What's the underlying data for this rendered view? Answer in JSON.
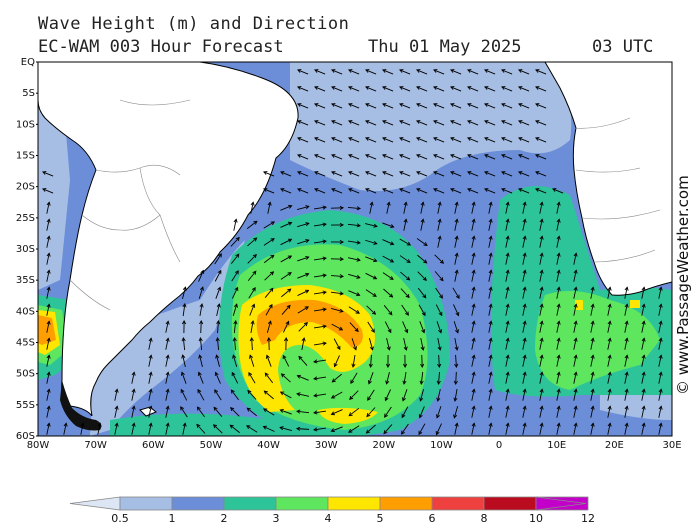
{
  "title": "Wave Height (m) and Direction",
  "model": "EC-WAM 003 Hour Forecast",
  "date": "Thu 01 May 2025",
  "time": "03 UTC",
  "watermark": "© www.PassageWeather.com",
  "lat_labels": [
    "EQ",
    "5S",
    "10S",
    "15S",
    "20S",
    "25S",
    "30S",
    "35S",
    "40S",
    "45S",
    "50S",
    "55S",
    "60S"
  ],
  "lon_labels": [
    "80W",
    "70W",
    "60W",
    "50W",
    "40W",
    "30W",
    "20W",
    "10W",
    "0",
    "10E",
    "20E",
    "30E"
  ],
  "colorbar": {
    "ticks": [
      "0.5",
      "1",
      "2",
      "3",
      "4",
      "5",
      "6",
      "8",
      "10",
      "12"
    ],
    "colors": [
      "#dde6f4",
      "#a7bee4",
      "#6c8ed8",
      "#2ec49a",
      "#5ee65e",
      "#ffe600",
      "#ff9e00",
      "#ef4040",
      "#bb0b1e",
      "#c200c9"
    ]
  },
  "colors": {
    "ocean": "#6c8ed8",
    "land": "#ffffff",
    "coast": "#000000",
    "arrow": "#000000"
  }
}
